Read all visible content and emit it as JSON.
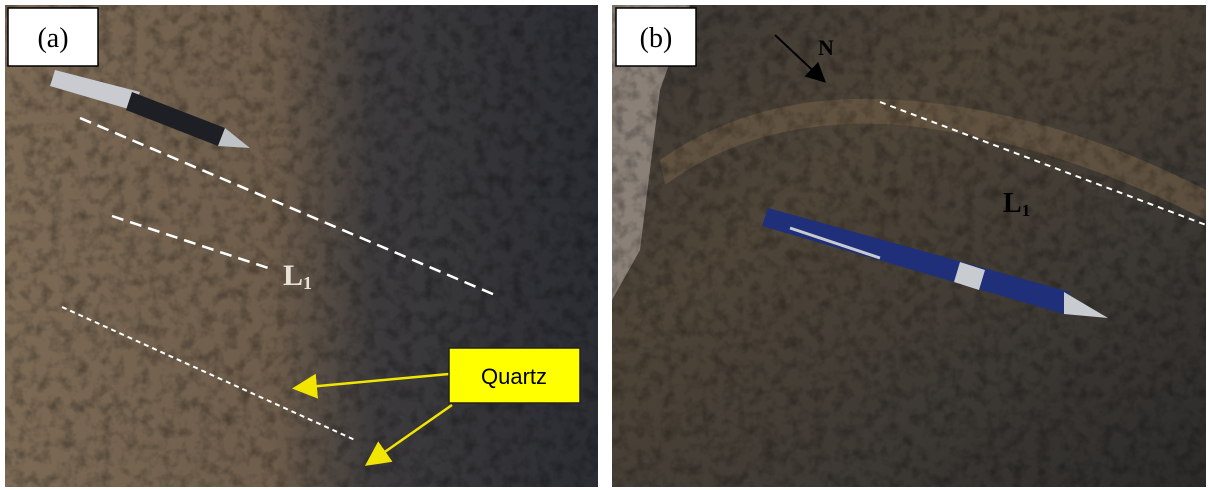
{
  "panels": [
    {
      "label": "(a)",
      "lineation": {
        "main": "L",
        "sub": "1"
      },
      "callout": "Quartz"
    },
    {
      "label": "(b)",
      "marker": "N",
      "lineation": {
        "main": "L",
        "sub": "1"
      }
    }
  ]
}
